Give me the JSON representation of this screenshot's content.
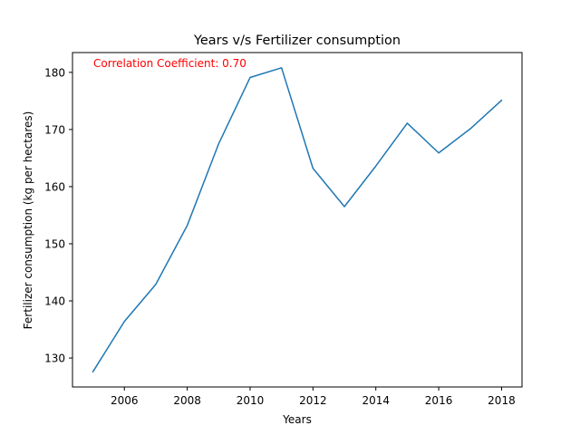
{
  "chart_data": {
    "type": "line",
    "title": "Years v/s Fertilizer consumption",
    "xlabel": "Years",
    "ylabel": "Fertilizer consumption (kg per hectares)",
    "annotation": "Correlation Coefficient: 0.70",
    "annotation_color": "#ff0000",
    "line_color": "#1f77b4",
    "grid": false,
    "x": [
      2005,
      2006,
      2007,
      2008,
      2009,
      2010,
      2011,
      2012,
      2013,
      2014,
      2015,
      2016,
      2017,
      2018
    ],
    "series": [
      {
        "values": [
          127.6,
          136.4,
          142.9,
          153.2,
          167.5,
          179.1,
          180.8,
          163.2,
          156.5,
          163.6,
          171.1,
          165.9,
          170.1,
          175.1
        ]
      }
    ],
    "xticks": [
      2006,
      2008,
      2010,
      2012,
      2014,
      2016,
      2018
    ],
    "yticks": [
      130,
      140,
      150,
      160,
      170,
      180
    ],
    "xlim": [
      2004.35,
      2018.65
    ],
    "ylim": [
      124.935,
      183.465
    ]
  }
}
